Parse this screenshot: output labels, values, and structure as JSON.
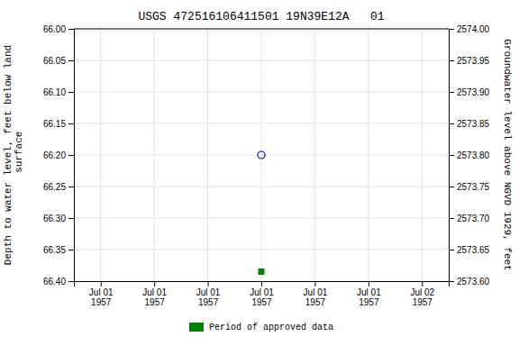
{
  "chart_data": {
    "type": "scatter",
    "title": "USGS 472516106411501 19N39E12A   01",
    "y_label": "Depth to water level, feet below land\n surface",
    "y2_label": "Groundwater level above NGVD 1929, feet",
    "categories": [
      "Jul 01\n1957",
      "Jul 01\n1957",
      "Jul 01\n1957",
      "Jul 01\n1957",
      "Jul 01\n1957",
      "Jul 01\n1957",
      "Jul 02\n1957"
    ],
    "series": [
      {
        "color": "#0000cc",
        "marker": "circle-open",
        "values": [
          null,
          null,
          null,
          66.2,
          null,
          null,
          null
        ]
      },
      {
        "name": "Period of approved data",
        "color": "#008000",
        "marker": "square",
        "values": [
          null,
          null,
          null,
          66.385,
          null,
          null,
          null
        ]
      }
    ],
    "ylim": [
      66.4,
      66.0
    ],
    "yticks": [
      {
        "value": 66.0,
        "label": "66.00"
      },
      66.05,
      {
        "value": 66.1,
        "label": "66.10"
      },
      66.15,
      {
        "value": 66.2,
        "label": "66.20"
      },
      66.25,
      {
        "value": 66.3,
        "label": "66.30"
      },
      66.35,
      {
        "value": 66.4,
        "label": "66.40"
      }
    ],
    "y2lim": [
      2573.6,
      2574.0
    ],
    "y2ticks": [
      {
        "value": 2573.6,
        "label": "2573.60"
      },
      2573.65,
      {
        "value": 2573.7,
        "label": "2573.70"
      },
      2573.75,
      {
        "value": 2573.8,
        "label": "2573.80"
      },
      2573.85,
      {
        "value": 2573.9,
        "label": "2573.90"
      },
      2573.95,
      {
        "value": 2574.0,
        "label": "2574.00"
      }
    ],
    "grid": true,
    "legend": "bottom"
  }
}
